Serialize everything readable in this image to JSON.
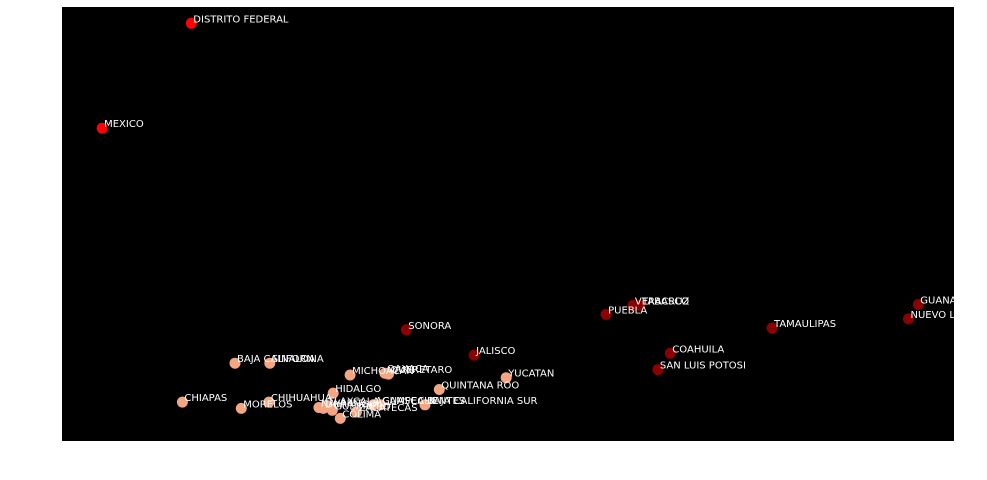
{
  "colors": {
    "page_background": "#ffffff",
    "plot_background": "#000000",
    "label_text": "#ffffff",
    "cluster_high": "#ff0000",
    "cluster_mid": "#8b0000",
    "cluster_low": "#f4a582"
  },
  "chart_data": {
    "type": "scatter",
    "title": "",
    "xlabel": "",
    "ylabel": "",
    "grid": false,
    "axes_ticks_visible": false,
    "xlim": [
      0,
      1000
    ],
    "ylim": [
      0,
      480
    ],
    "points": [
      {
        "label": "DISTRITO FEDERAL",
        "x": 145,
        "y": 462,
        "cluster": "high"
      },
      {
        "label": "MEXICO",
        "x": 45,
        "y": 346,
        "cluster": "high"
      },
      {
        "label": "GUANAJUATO",
        "x": 960,
        "y": 151,
        "cluster": "mid"
      },
      {
        "label": "NUEVO LEON",
        "x": 949,
        "y": 135,
        "cluster": "mid"
      },
      {
        "label": "VERACRUZ",
        "x": 640,
        "y": 150,
        "cluster": "mid"
      },
      {
        "label": "TABASCO",
        "x": 648,
        "y": 150,
        "cluster": "mid"
      },
      {
        "label": "PUEBLA",
        "x": 610,
        "y": 140,
        "cluster": "mid"
      },
      {
        "label": "TAMAULIPAS",
        "x": 796,
        "y": 125,
        "cluster": "mid"
      },
      {
        "label": "SONORA",
        "x": 386,
        "y": 123,
        "cluster": "mid"
      },
      {
        "label": "JALISCO",
        "x": 462,
        "y": 95,
        "cluster": "mid"
      },
      {
        "label": "COAHUILA",
        "x": 682,
        "y": 97,
        "cluster": "mid"
      },
      {
        "label": "SAN LUIS POTOSI",
        "x": 668,
        "y": 79,
        "cluster": "mid"
      },
      {
        "label": "BAJA CALIFORNIA",
        "x": 194,
        "y": 86,
        "cluster": "low"
      },
      {
        "label": "SINALOA",
        "x": 233,
        "y": 86,
        "cluster": "low"
      },
      {
        "label": "MICHOACAN",
        "x": 323,
        "y": 73,
        "cluster": "low"
      },
      {
        "label": "OAXACA",
        "x": 362,
        "y": 75,
        "cluster": "low"
      },
      {
        "label": "QUERETARO",
        "x": 366,
        "y": 74,
        "cluster": "low"
      },
      {
        "label": "YUCATAN",
        "x": 498,
        "y": 70,
        "cluster": "low"
      },
      {
        "label": "QUINTANA ROO",
        "x": 423,
        "y": 57,
        "cluster": "low"
      },
      {
        "label": "HIDALGO",
        "x": 304,
        "y": 53,
        "cluster": "low"
      },
      {
        "label": "CHIAPAS",
        "x": 135,
        "y": 43,
        "cluster": "low"
      },
      {
        "label": "CHIHUAHUA",
        "x": 232,
        "y": 43,
        "cluster": "low"
      },
      {
        "label": "MORELOS",
        "x": 201,
        "y": 36,
        "cluster": "low"
      },
      {
        "label": "TLAXCALA",
        "x": 296,
        "y": 39,
        "cluster": "low"
      },
      {
        "label": "NAYARIT",
        "x": 288,
        "y": 37,
        "cluster": "low"
      },
      {
        "label": "DURANGO",
        "x": 293,
        "y": 36,
        "cluster": "low"
      },
      {
        "label": "AGUASCALIENTES",
        "x": 349,
        "y": 40,
        "cluster": "low"
      },
      {
        "label": "CAMPECHE",
        "x": 357,
        "y": 40,
        "cluster": "low"
      },
      {
        "label": "BAJA CALIFORNIA SUR",
        "x": 407,
        "y": 40,
        "cluster": "low"
      },
      {
        "label": "GUERRERO",
        "x": 303,
        "y": 34,
        "cluster": "low"
      },
      {
        "label": "ZACATECAS",
        "x": 330,
        "y": 32,
        "cluster": "low"
      },
      {
        "label": "COLIMA",
        "x": 312,
        "y": 25,
        "cluster": "low"
      }
    ]
  }
}
